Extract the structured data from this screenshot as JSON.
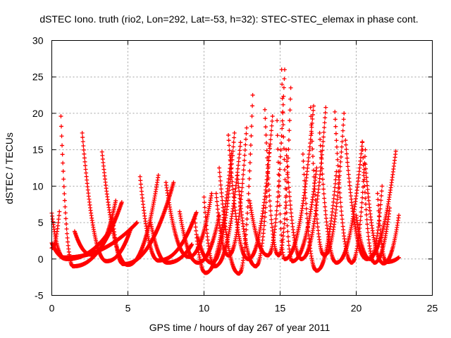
{
  "chart_data": {
    "type": "scatter",
    "title": "dSTEC Iono. truth (rio2, Lon=292, Lat=-53, h=32): STEC-STEC_elemax in phase cont.",
    "xlabel": "GPS time / hours of day 267 of year 2011",
    "ylabel": "dSTEC  / TECUs",
    "xlim": [
      0,
      25
    ],
    "ylim": [
      -5,
      30
    ],
    "xticks": [
      0,
      5,
      10,
      15,
      20,
      25
    ],
    "yticks": [
      -5,
      0,
      5,
      10,
      15,
      20,
      25,
      30
    ],
    "grid": true,
    "marker": "+",
    "color": "#ff0000",
    "arcs": [
      {
        "t0": 0.0,
        "tmin": 0.0,
        "t1": 0.5,
        "ystart": 1.5,
        "ymin": 1.5,
        "yend": 6.5
      },
      {
        "t0": 0.0,
        "tmin": 0.8,
        "t1": 5.6,
        "ystart": 6.3,
        "ymin": 0.2,
        "yend": 5.0
      },
      {
        "t0": 0.6,
        "tmin": 1.4,
        "t1": 4.6,
        "ystart": 19.6,
        "ymin": -1.0,
        "yend": 7.8
      },
      {
        "t0": 0.0,
        "tmin": 1.0,
        "t1": 4.0,
        "ystart": 2.2,
        "ymin": 0.0,
        "yend": 4.5
      },
      {
        "t0": 2.0,
        "tmin": 3.6,
        "t1": 5.2,
        "ystart": 17.3,
        "ymin": -0.3,
        "yend": 4.2
      },
      {
        "t0": 3.3,
        "tmin": 5.0,
        "t1": 7.0,
        "ystart": 14.7,
        "ymin": -0.8,
        "yend": 11.5
      },
      {
        "t0": 1.5,
        "tmin": 2.6,
        "t1": 4.2,
        "ystart": 3.8,
        "ymin": 0.6,
        "yend": 8.0
      },
      {
        "t0": 4.0,
        "tmin": 4.7,
        "t1": 8.0,
        "ystart": 5.5,
        "ymin": -0.7,
        "yend": 10.5
      },
      {
        "t0": 5.8,
        "tmin": 7.0,
        "t1": 9.5,
        "ystart": 11.3,
        "ymin": -0.2,
        "yend": 6.4
      },
      {
        "t0": 6.5,
        "tmin": 7.6,
        "t1": 9.2,
        "ystart": 5.0,
        "ymin": -0.5,
        "yend": 2.0
      },
      {
        "t0": 7.5,
        "tmin": 9.0,
        "t1": 10.5,
        "ystart": 10.5,
        "ymin": 0.3,
        "yend": 9.0
      },
      {
        "t0": 8.4,
        "tmin": 9.6,
        "t1": 11.0,
        "ystart": 6.5,
        "ymin": -0.5,
        "yend": 6.0
      },
      {
        "t0": 9.4,
        "tmin": 10.1,
        "t1": 11.8,
        "ystart": 5.5,
        "ymin": -1.9,
        "yend": 14.5
      },
      {
        "t0": 9.6,
        "tmin": 10.5,
        "t1": 12.0,
        "ystart": 3.0,
        "ymin": -0.5,
        "yend": 17.3
      },
      {
        "t0": 10.0,
        "tmin": 10.7,
        "t1": 12.4,
        "ystart": 8.5,
        "ymin": -1.0,
        "yend": 16.0
      },
      {
        "t0": 11.0,
        "tmin": 12.3,
        "t1": 13.2,
        "ystart": 12.5,
        "ymin": -2.0,
        "yend": 22.5
      },
      {
        "t0": 10.8,
        "tmin": 11.6,
        "t1": 12.8,
        "ystart": 9.0,
        "ymin": 0.5,
        "yend": 18.0
      },
      {
        "t0": 11.6,
        "tmin": 12.9,
        "t1": 14.5,
        "ystart": 17.0,
        "ymin": 0.0,
        "yend": 19.6
      },
      {
        "t0": 12.2,
        "tmin": 13.4,
        "t1": 14.3,
        "ystart": 11.5,
        "ymin": -1.0,
        "yend": 15.5
      },
      {
        "t0": 13.0,
        "tmin": 14.2,
        "t1": 15.3,
        "ystart": 8.0,
        "ymin": 0.5,
        "yend": 26.0
      },
      {
        "t0": 14.0,
        "tmin": 14.9,
        "t1": 15.7,
        "ystart": 20.5,
        "ymin": 0.5,
        "yend": 23.5
      },
      {
        "t0": 14.8,
        "tmin": 15.3,
        "t1": 17.2,
        "ystart": 19.0,
        "ymin": 0.0,
        "yend": 21.0
      },
      {
        "t0": 15.1,
        "tmin": 15.8,
        "t1": 17.4,
        "ystart": 26.0,
        "ymin": -0.3,
        "yend": 12.5
      },
      {
        "t0": 15.4,
        "tmin": 16.4,
        "t1": 18.0,
        "ystart": 15.0,
        "ymin": 0.0,
        "yend": 20.8
      },
      {
        "t0": 16.5,
        "tmin": 17.4,
        "t1": 18.7,
        "ystart": 14.4,
        "ymin": -1.6,
        "yend": 12.0
      },
      {
        "t0": 17.0,
        "tmin": 17.9,
        "t1": 19.2,
        "ystart": 20.8,
        "ymin": 0.5,
        "yend": 20.0
      },
      {
        "t0": 17.6,
        "tmin": 18.7,
        "t1": 20.4,
        "ystart": 17.3,
        "ymin": -0.5,
        "yend": 16.0
      },
      {
        "t0": 18.6,
        "tmin": 19.7,
        "t1": 20.6,
        "ystart": 20.2,
        "ymin": -0.5,
        "yend": 15.0
      },
      {
        "t0": 19.3,
        "tmin": 20.7,
        "t1": 22.6,
        "ystart": 16.3,
        "ymin": 0.0,
        "yend": 14.8
      },
      {
        "t0": 20.4,
        "tmin": 21.2,
        "t1": 22.2,
        "ystart": 16.1,
        "ymin": -0.5,
        "yend": 7.0
      },
      {
        "t0": 20.6,
        "tmin": 21.8,
        "t1": 22.8,
        "ystart": 13.0,
        "ymin": -0.6,
        "yend": 6.0
      },
      {
        "t0": 21.4,
        "tmin": 22.0,
        "t1": 22.8,
        "ystart": 9.0,
        "ymin": -0.4,
        "yend": 0.2
      },
      {
        "t0": 20.0,
        "tmin": 20.9,
        "t1": 21.7,
        "ystart": 6.0,
        "ymin": 0.0,
        "yend": 10.0
      }
    ]
  }
}
